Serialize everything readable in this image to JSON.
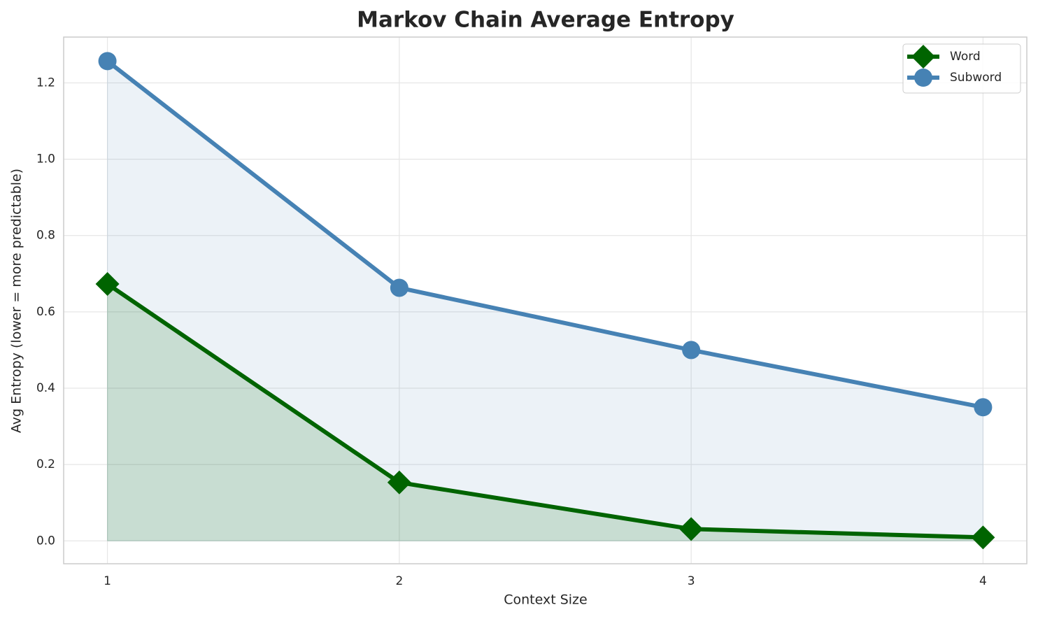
{
  "chart_data": {
    "type": "line",
    "title": "Markov Chain Average Entropy",
    "xlabel": "Context Size",
    "ylabel": "Avg Entropy (lower = more predictable)",
    "x": [
      1,
      2,
      3,
      4
    ],
    "series": [
      {
        "name": "Word",
        "color": "#006400",
        "marker": "diamond",
        "values": [
          0.673,
          0.153,
          0.031,
          0.009
        ]
      },
      {
        "name": "Subword",
        "color": "#4682b4",
        "marker": "circle",
        "values": [
          1.257,
          0.663,
          0.5,
          0.35
        ]
      }
    ],
    "xlim": [
      0.85,
      4.15
    ],
    "xticks": [
      1,
      2,
      3,
      4
    ],
    "ylim": [
      -0.06,
      1.32
    ],
    "yticks": [
      {
        "value": 0,
        "label": "0.0"
      },
      0.2,
      0.4,
      0.6,
      0.8,
      {
        "value": 1,
        "label": "1.0"
      },
      1.2
    ],
    "grid": true,
    "fill": true,
    "legend": "upper right"
  }
}
